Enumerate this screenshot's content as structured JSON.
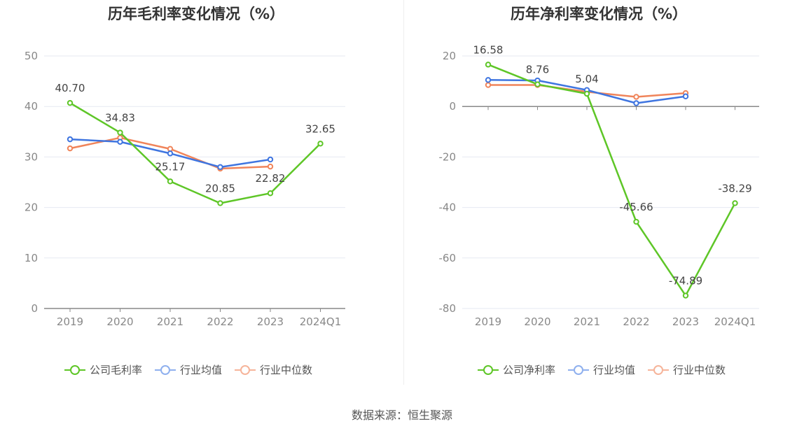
{
  "source_label": "数据来源：恒生聚源",
  "colors": {
    "company": "#5ec627",
    "industry_avg": "#3f75e0",
    "industry_median": "#f0845a"
  },
  "chart_data": [
    {
      "type": "line",
      "title": "历年毛利率变化情况（%）",
      "categories": [
        "2019",
        "2020",
        "2021",
        "2022",
        "2023",
        "2024Q1"
      ],
      "ylim": [
        0,
        50
      ],
      "yticks": [
        0,
        10,
        20,
        30,
        40,
        50
      ],
      "series": [
        {
          "name": "公司毛利率",
          "key": "company",
          "values": [
            40.7,
            34.83,
            25.17,
            20.85,
            22.82,
            32.65
          ],
          "labels": [
            "40.70",
            "34.83",
            "25.17",
            "20.85",
            "22.82",
            "32.65"
          ]
        },
        {
          "name": "行业均值",
          "key": "industry_avg",
          "values": [
            33.5,
            33.0,
            30.7,
            28.0,
            29.5,
            null
          ]
        },
        {
          "name": "行业中位数",
          "key": "industry_median",
          "values": [
            31.7,
            33.8,
            31.6,
            27.7,
            28.1,
            null
          ]
        }
      ]
    },
    {
      "type": "line",
      "title": "历年净利率变化情况（%）",
      "categories": [
        "2019",
        "2020",
        "2021",
        "2022",
        "2023",
        "2024Q1"
      ],
      "ylim": [
        -80,
        20
      ],
      "yticks": [
        -80,
        -60,
        -40,
        -20,
        0,
        20
      ],
      "series": [
        {
          "name": "公司净利率",
          "key": "company",
          "values": [
            16.58,
            8.76,
            5.04,
            -45.66,
            -74.89,
            -38.29
          ],
          "labels": [
            "16.58",
            "8.76",
            "5.04",
            "-45.66",
            "-74.89",
            "-38.29"
          ]
        },
        {
          "name": "行业均值",
          "key": "industry_avg",
          "values": [
            10.5,
            10.3,
            6.5,
            1.3,
            4.0,
            null
          ]
        },
        {
          "name": "行业中位数",
          "key": "industry_median",
          "values": [
            8.5,
            8.5,
            5.8,
            3.8,
            5.3,
            null
          ]
        }
      ]
    }
  ]
}
